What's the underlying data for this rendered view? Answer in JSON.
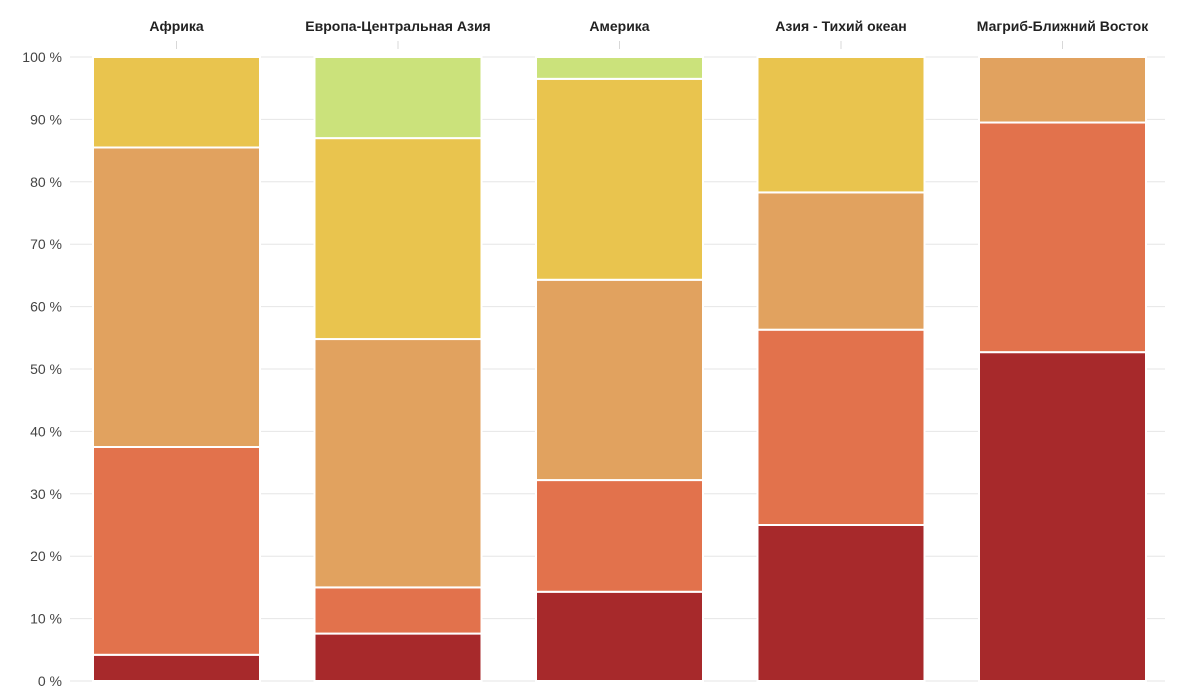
{
  "chart_data": {
    "type": "bar",
    "stacked": true,
    "percent": true,
    "categories": [
      "Африка",
      "Европа-Центральная Азия",
      "Америка",
      "Азия - Тихий океан",
      "Магриб-Ближний Восток"
    ],
    "series": [
      {
        "color": "#a7292b",
        "values": [
          4.2,
          7.6,
          14.3,
          25.0,
          52.7
        ]
      },
      {
        "color": "#e2724c",
        "values": [
          33.3,
          7.4,
          17.9,
          31.3,
          36.8
        ]
      },
      {
        "color": "#e1a25f",
        "values": [
          48.0,
          39.8,
          32.1,
          22.0,
          10.5
        ]
      },
      {
        "color": "#e9c44e",
        "values": [
          14.5,
          32.2,
          32.2,
          21.7,
          0
        ]
      },
      {
        "color": "#cbe27b",
        "values": [
          0,
          13.0,
          3.5,
          0,
          0
        ]
      }
    ],
    "ylim": [
      0,
      100
    ],
    "y_ticks": [
      "0 %",
      "10 %",
      "20 %",
      "30 %",
      "40 %",
      "50 %",
      "60 %",
      "70 %",
      "80 %",
      "90 %",
      "100 %"
    ],
    "grid": true
  }
}
